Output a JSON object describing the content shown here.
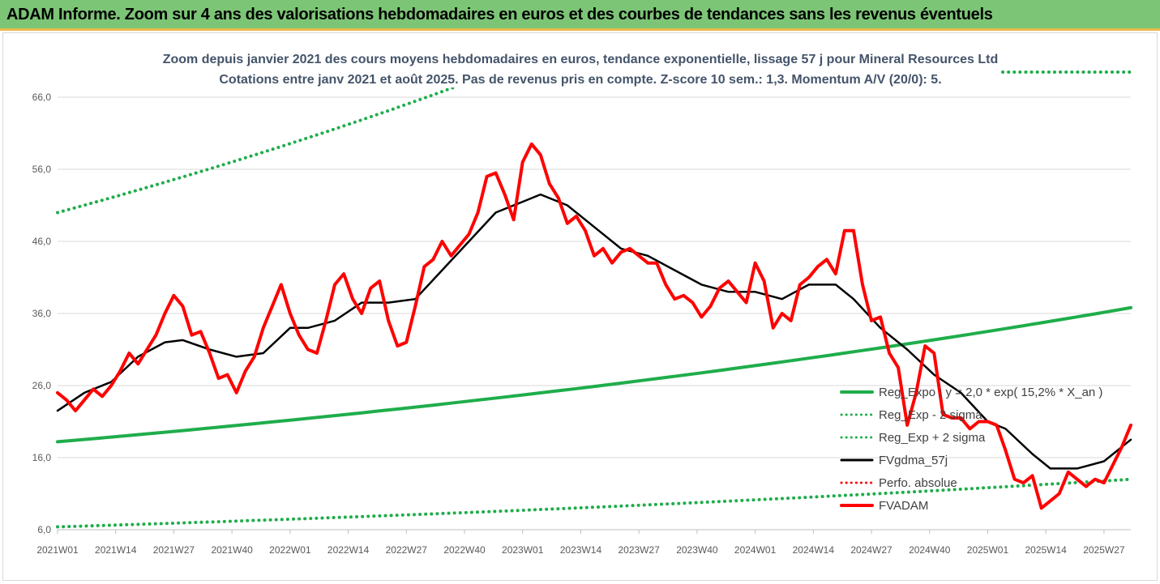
{
  "banner": {
    "title": "ADAM Informe. Zoom sur 4 ans des valorisations hebdomadaires en euros et des courbes de tendances sans les revenus éventuels"
  },
  "chart_data": {
    "type": "line",
    "title": "Zoom depuis janvier 2021 des cours moyens hebdomadaires en euros, tendance exponentielle, lissage 57 j pour Mineral Resources Ltd",
    "subtitle": "Cotations entre janv 2021 et août 2025.  Pas de revenus pris en compte. Z-score 10 sem.: 1,3. Momentum A/V (20/0): 5.",
    "xlabel": "",
    "ylabel": "",
    "ylim": [
      6,
      66
    ],
    "yticks": [
      "66,0",
      "56,0",
      "46,0",
      "36,0",
      "26,0",
      "16,0",
      "6,0"
    ],
    "x_range": [
      0,
      240
    ],
    "xticks": [
      {
        "label": "2021W01",
        "x": 0
      },
      {
        "label": "2021W14",
        "x": 13
      },
      {
        "label": "2021W27",
        "x": 26
      },
      {
        "label": "2021W40",
        "x": 39
      },
      {
        "label": "2022W01",
        "x": 52
      },
      {
        "label": "2022W14",
        "x": 65
      },
      {
        "label": "2022W27",
        "x": 78
      },
      {
        "label": "2022W40",
        "x": 91
      },
      {
        "label": "2023W01",
        "x": 104
      },
      {
        "label": "2023W14",
        "x": 117
      },
      {
        "label": "2023W27",
        "x": 130
      },
      {
        "label": "2023W40",
        "x": 143
      },
      {
        "label": "2024W01",
        "x": 156
      },
      {
        "label": "2024W14",
        "x": 169
      },
      {
        "label": "2024W27",
        "x": 182
      },
      {
        "label": "2024W40",
        "x": 195
      },
      {
        "label": "2025W01",
        "x": 208
      },
      {
        "label": "2025W14",
        "x": 221
      },
      {
        "label": "2025W27",
        "x": 234
      }
    ],
    "grid": true,
    "legend_position": "bottom-right",
    "series": [
      {
        "name": "Reg_Expo : y = 2,0 * exp( 15,2% *  X_an )",
        "color": "#1fad4b",
        "style": "solid",
        "x": [
          0,
          240
        ],
        "values": [
          18.2,
          36.8
        ]
      },
      {
        "name": "Reg_Exp - 2 sigma",
        "color": "#1fad4b",
        "style": "dotted",
        "x": [
          0,
          240
        ],
        "values": [
          6.4,
          13.0
        ]
      },
      {
        "name": "Reg_Exp + 2 sigma",
        "color": "#1fad4b",
        "style": "dotted",
        "x": [
          0,
          100
        ],
        "values": [
          50.0,
          70.0
        ]
      },
      {
        "name": "FVgdma_57j",
        "color": "#000000",
        "style": "solid",
        "x": [
          0,
          6,
          12,
          18,
          24,
          28,
          34,
          40,
          46,
          52,
          56,
          62,
          68,
          74,
          80,
          86,
          92,
          98,
          104,
          108,
          114,
          120,
          126,
          132,
          138,
          144,
          150,
          156,
          162,
          168,
          174,
          178,
          184,
          190,
          196,
          202,
          208,
          212,
          218,
          222,
          228,
          234,
          240
        ],
        "values": [
          22.5,
          25.0,
          26.5,
          30.0,
          32.0,
          32.3,
          31.0,
          30.0,
          30.5,
          34.0,
          34.0,
          35.0,
          37.5,
          37.5,
          38.0,
          42.0,
          46.0,
          50.0,
          51.5,
          52.5,
          51.0,
          48.0,
          45.0,
          44.0,
          42.0,
          40.0,
          39.0,
          39.0,
          38.0,
          40.0,
          40.0,
          38.0,
          34.0,
          31.0,
          27.5,
          25.0,
          21.0,
          20.0,
          16.5,
          14.5,
          14.5,
          15.5,
          18.5
        ]
      },
      {
        "name": "Perfo. absolue",
        "color": "#ff0000",
        "style": "dotted",
        "x": [],
        "values": []
      },
      {
        "name": "FVADAM",
        "color": "#ff0000",
        "style": "solid",
        "x": [
          0,
          2,
          4,
          6,
          8,
          10,
          12,
          14,
          16,
          18,
          20,
          22,
          24,
          26,
          28,
          30,
          32,
          34,
          36,
          38,
          40,
          42,
          44,
          46,
          48,
          50,
          52,
          54,
          56,
          58,
          60,
          62,
          64,
          66,
          68,
          70,
          72,
          74,
          76,
          78,
          80,
          82,
          84,
          86,
          88,
          90,
          92,
          94,
          96,
          98,
          100,
          102,
          104,
          106,
          108,
          110,
          112,
          114,
          116,
          118,
          120,
          122,
          124,
          126,
          128,
          130,
          132,
          134,
          136,
          138,
          140,
          142,
          144,
          146,
          148,
          150,
          152,
          154,
          156,
          158,
          160,
          162,
          164,
          166,
          168,
          170,
          172,
          174,
          176,
          178,
          180,
          182,
          184,
          186,
          188,
          190,
          192,
          194,
          196,
          198,
          200,
          202,
          204,
          206,
          208,
          210,
          212,
          214,
          216,
          218,
          220,
          222,
          224,
          226,
          228,
          230,
          232,
          234,
          236,
          238,
          240
        ],
        "values": [
          25.0,
          24.0,
          22.5,
          24.0,
          25.5,
          24.5,
          26.0,
          28.0,
          30.5,
          29.0,
          31.0,
          33.0,
          36.0,
          38.5,
          37.0,
          33.0,
          33.5,
          30.5,
          27.0,
          27.5,
          25.0,
          28.0,
          30.0,
          34.0,
          37.0,
          40.0,
          36.0,
          33.0,
          31.0,
          30.5,
          35.0,
          40.0,
          41.5,
          38.0,
          36.0,
          39.5,
          40.5,
          35.0,
          31.5,
          32.0,
          37.0,
          42.5,
          43.5,
          46.0,
          44.0,
          45.5,
          47.0,
          50.0,
          55.0,
          55.5,
          52.5,
          49.0,
          57.0,
          59.5,
          58.0,
          54.0,
          52.0,
          48.5,
          49.5,
          47.5,
          44.0,
          45.0,
          43.0,
          44.5,
          45.0,
          44.0,
          43.0,
          43.0,
          40.0,
          38.0,
          38.5,
          37.5,
          35.5,
          37.0,
          39.5,
          40.5,
          39.0,
          37.5,
          43.0,
          40.5,
          34.0,
          36.0,
          35.0,
          40.0,
          41.0,
          42.5,
          43.5,
          41.5,
          47.5,
          47.5,
          40.0,
          35.0,
          35.5,
          30.5,
          28.5,
          20.5,
          25.0,
          31.5,
          30.5,
          22.0,
          21.5,
          21.5,
          20.0,
          21.0,
          21.0,
          20.5,
          17.0,
          13.0,
          12.5,
          13.5,
          9.0,
          10.0,
          11.0,
          14.0,
          13.0,
          12.0,
          13.0,
          12.5,
          15.0,
          17.5,
          20.5
        ]
      }
    ]
  }
}
